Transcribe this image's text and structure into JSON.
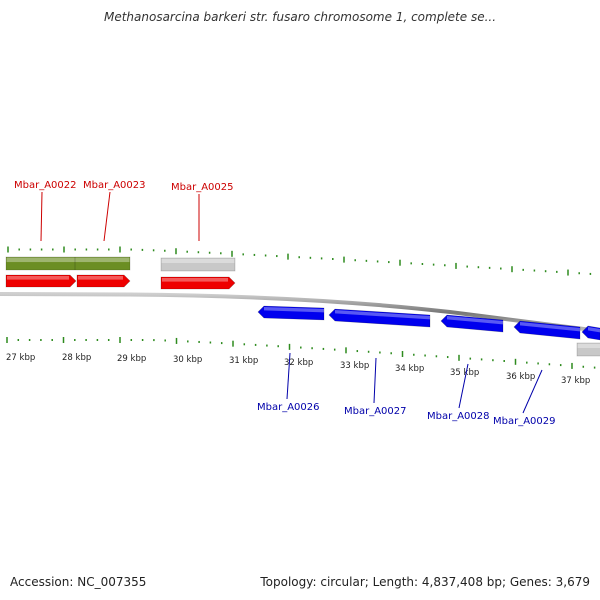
{
  "title": "Methanosarcina barkeri str. fusaro chromosome 1, complete se...",
  "footer": {
    "accession": "Accession: NC_007355",
    "summary": "Topology: circular; Length: 4,837,408 bp; Genes: 3,679"
  },
  "colors": {
    "top_label": "#cc0000",
    "bottom_label": "#0000aa",
    "tick": "#2e8b1e",
    "backbone": "#777777",
    "green_feature": "#6b8e23",
    "red_feature": "#ee0000",
    "gray_feature": "#c8c8c8",
    "blue_feature": "#0000ee"
  },
  "scale": {
    "labels": [
      "27 kbp",
      "28 kbp",
      "29 kbp",
      "30 kbp",
      "31 kbp",
      "32 kbp",
      "33 kbp",
      "34 kbp",
      "35 kbp",
      "36 kbp",
      "37 kbp"
    ]
  },
  "top_genes": [
    {
      "name": "Mbar_A0022"
    },
    {
      "name": "Mbar_A0023"
    },
    {
      "name": "Mbar_A0025"
    }
  ],
  "bottom_genes": [
    {
      "name": "Mbar_A0026"
    },
    {
      "name": "Mbar_A0027"
    },
    {
      "name": "Mbar_A0028"
    },
    {
      "name": "Mbar_A0029"
    }
  ]
}
